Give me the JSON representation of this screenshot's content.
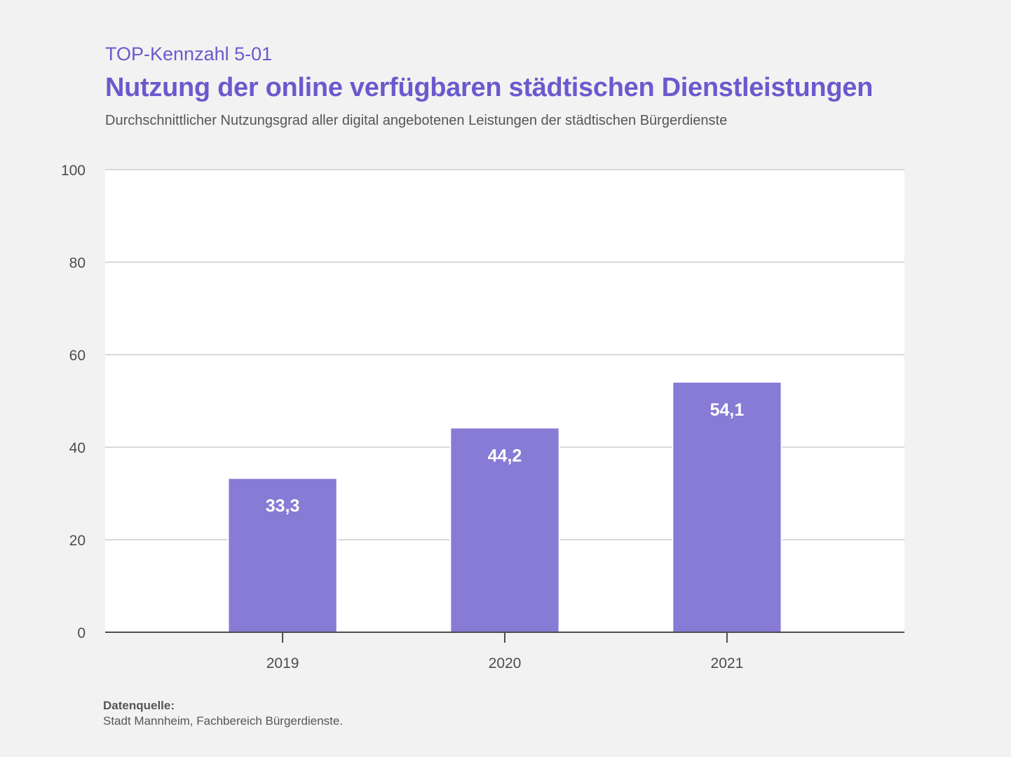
{
  "header": {
    "kicker": "TOP-Kennzahl 5-01",
    "title": "Nutzung der online verfügbaren städtischen Dienstleistungen",
    "subtitle": "Durchschnittlicher Nutzungsgrad aller digital angebotenen Leistungen der städtischen Bürgerdienste"
  },
  "footer": {
    "source_label": "Datenquelle:",
    "source_text": "Stadt Mannheim, Fachbereich Bürgerdienste."
  },
  "colors": {
    "bar": "#877bd6",
    "title": "#6a5acd",
    "grid": "#d9d9d9",
    "axis": "#4d4d4d",
    "plot_bg": "#ffffff",
    "page_bg": "#f2f2f2"
  },
  "chart_data": {
    "type": "bar",
    "title": "Nutzung der online verfügbaren städtischen Dienstleistungen",
    "subtitle": "Durchschnittlicher Nutzungsgrad aller digital angebotenen Leistungen der städtischen Bürgerdienste",
    "categories": [
      "2019",
      "2020",
      "2021"
    ],
    "values": [
      33.3,
      44.2,
      54.1
    ],
    "data_labels": [
      "33,3",
      "44,2",
      "54,1"
    ],
    "xlabel": "",
    "ylabel": "",
    "ylim": [
      0,
      100
    ],
    "yticks": [
      0,
      20,
      40,
      60,
      80,
      100
    ],
    "ytick_labels": [
      "0",
      "20",
      "40",
      "60",
      "80",
      "100"
    ],
    "grid": true,
    "legend": "none"
  }
}
